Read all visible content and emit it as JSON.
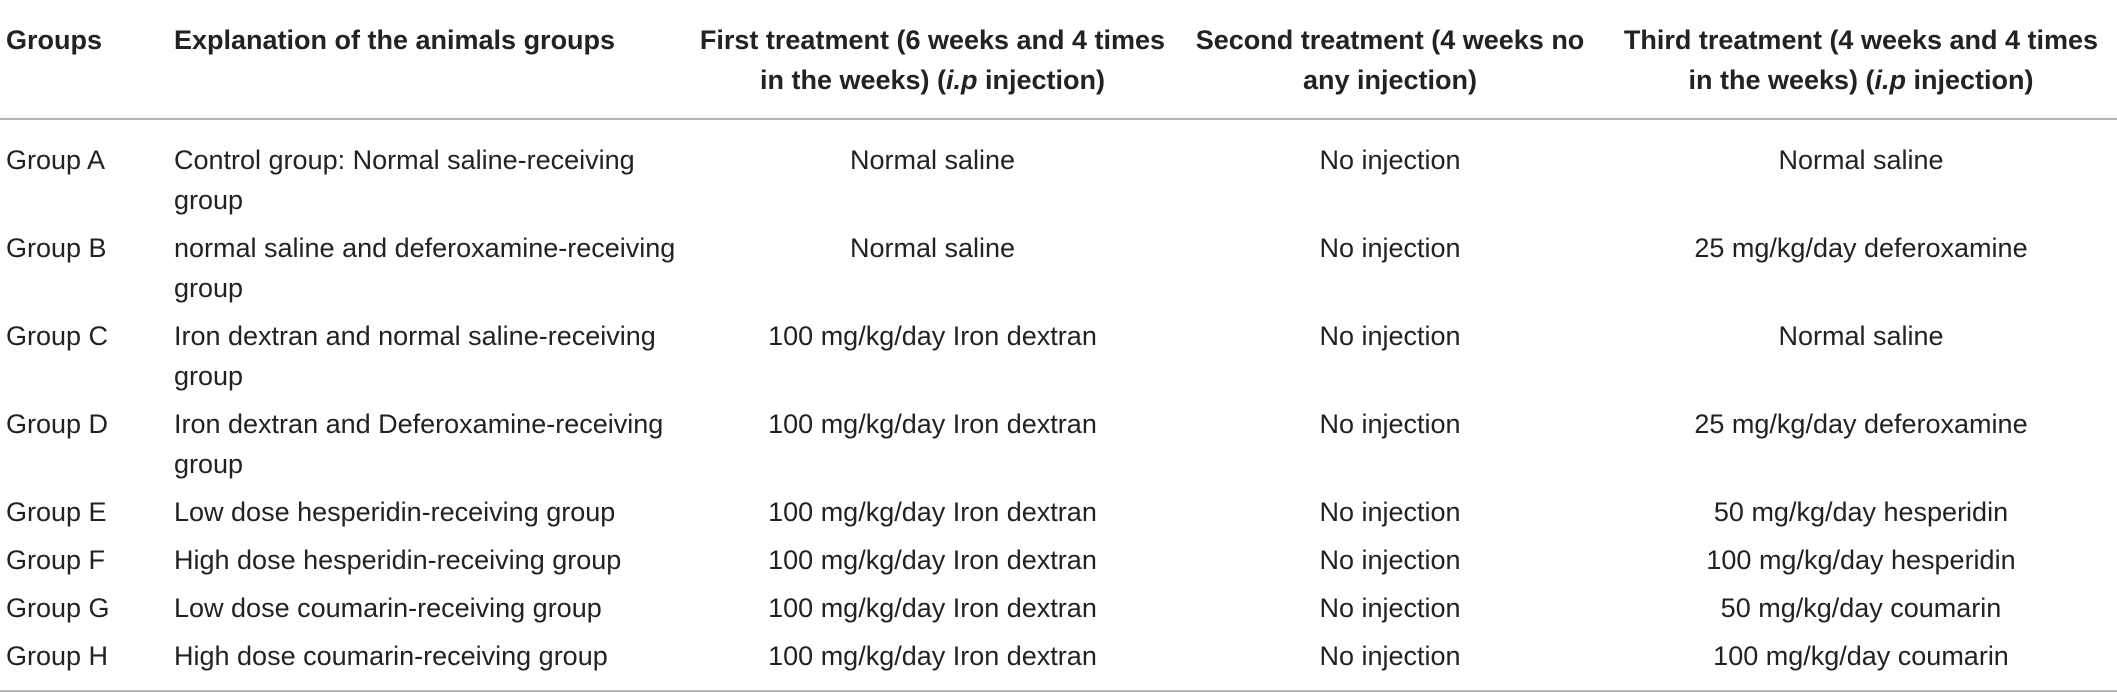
{
  "table": {
    "headers": {
      "groups": "Groups",
      "explanation": "Explanation of the animals groups",
      "first_treatment_prefix": "First treatment (6 weeks and 4 times in the weeks) (",
      "first_treatment_italic": "i.p",
      "first_treatment_suffix": " injection)",
      "second_treatment": "Second treatment (4 weeks no any injection)",
      "third_treatment_prefix": "Third treatment (4 weeks and 4 times in the weeks) (",
      "third_treatment_italic": "i.p",
      "third_treatment_suffix": " injection)"
    },
    "rows": [
      {
        "group": "Group A",
        "explanation": "Control group: Normal saline-receiving group",
        "first": "Normal saline",
        "second": "No injection",
        "third": "Normal saline"
      },
      {
        "group": "Group B",
        "explanation": "normal saline and deferoxamine-receiving group",
        "first": "Normal saline",
        "second": "No injection",
        "third": "25 mg/kg/day deferoxamine"
      },
      {
        "group": "Group C",
        "explanation": "Iron dextran and normal saline-receiving group",
        "first": "100 mg/kg/day Iron dextran",
        "second": "No injection",
        "third": "Normal saline"
      },
      {
        "group": "Group D",
        "explanation": "Iron dextran and Deferoxamine-receiving group",
        "first": "100 mg/kg/day Iron dextran",
        "second": "No injection",
        "third": "25 mg/kg/day deferoxamine"
      },
      {
        "group": "Group E",
        "explanation": "Low dose hesperidin-receiving group",
        "first": "100 mg/kg/day Iron dextran",
        "second": "No injection",
        "third": "50 mg/kg/day hesperidin"
      },
      {
        "group": "Group F",
        "explanation": "High dose hesperidin-receiving group",
        "first": "100 mg/kg/day Iron dextran",
        "second": "No injection",
        "third": "100 mg/kg/day hesperidin"
      },
      {
        "group": "Group G",
        "explanation": "Low dose coumarin-receiving group",
        "first": "100 mg/kg/day Iron dextran",
        "second": "No injection",
        "third": "50 mg/kg/day coumarin"
      },
      {
        "group": "Group H",
        "explanation": "High dose coumarin-receiving group",
        "first": "100 mg/kg/day Iron dextran",
        "second": "No injection",
        "third": "100 mg/kg/day coumarin"
      }
    ]
  }
}
